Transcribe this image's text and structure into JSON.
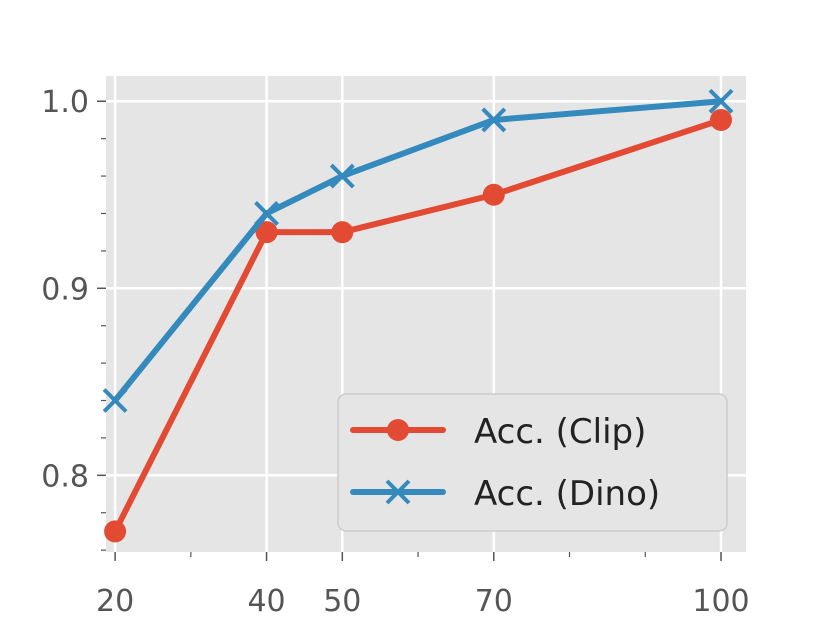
{
  "chart_data": {
    "type": "line",
    "title": "",
    "xlabel": "",
    "ylabel": "",
    "x": [
      20,
      40,
      50,
      70,
      100
    ],
    "x_ticks": [
      "20",
      "40",
      "50",
      "70",
      "100"
    ],
    "y_ticks": [
      "0.8",
      "0.9",
      "1.0"
    ],
    "xlim": [
      18.8,
      103.3
    ],
    "ylim": [
      0.759,
      1.0135
    ],
    "grid": true,
    "legend_position": "lower-right",
    "background": "#e5e5e5",
    "series": [
      {
        "name": "Acc. (Clip)",
        "values": [
          0.77,
          0.93,
          0.93,
          0.95,
          0.99
        ],
        "color": "#e24a33",
        "marker": "circle"
      },
      {
        "name": "Acc. (Dino)",
        "values": [
          0.84,
          0.94,
          0.96,
          0.99,
          1.0
        ],
        "color": "#348abd",
        "marker": "x"
      }
    ]
  }
}
